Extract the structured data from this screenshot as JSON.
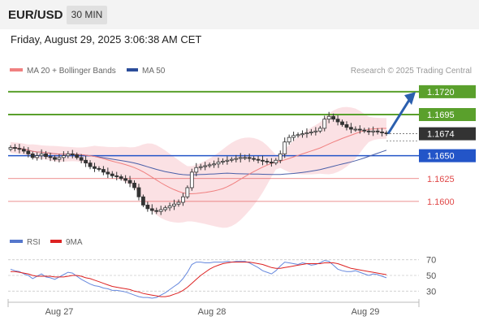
{
  "header": {
    "pair": "EUR/USD",
    "timeframe": "30 MIN",
    "datetime": "Friday, August 29, 2025 3:06:38 AM CET"
  },
  "legend": {
    "ma20": "MA 20 + Bollinger Bands",
    "ma50": "MA 50",
    "credit": "Research © 2025 Trading Central",
    "rsi": "RSI",
    "rsi_ma": "9MA"
  },
  "colors": {
    "candle": "#333333",
    "ma20": "#f08080",
    "bollinger": "#fadadd",
    "ma50": "#4a5fa8",
    "resistance": "#5aa02c",
    "pivot": "#2355c8",
    "support": "#e04848",
    "last_price": "#333333",
    "arrow": "#2b5fae",
    "rsi": "#6688dd",
    "rsi_ma": "#dd2222"
  },
  "chart_data": [
    {
      "type": "candlestick",
      "x_ticks": [
        "Aug 27",
        "Aug 28",
        "Aug 29"
      ],
      "ylim": [
        1.1575,
        1.1735
      ],
      "levels": [
        {
          "label": "1.1720",
          "value": 1.172,
          "kind": "resistance"
        },
        {
          "label": "1.1695",
          "value": 1.1695,
          "kind": "resistance"
        },
        {
          "label": "1.1674",
          "value": 1.1674,
          "kind": "last"
        },
        {
          "label": "1.1650",
          "value": 1.165,
          "kind": "pivot"
        },
        {
          "label": "1.1625",
          "value": 1.1625,
          "kind": "support"
        },
        {
          "label": "1.1600",
          "value": 1.16,
          "kind": "support"
        }
      ],
      "close": [
        1.1659,
        1.1658,
        1.1657,
        1.1655,
        1.1652,
        1.1648,
        1.165,
        1.1652,
        1.1649,
        1.1648,
        1.1646,
        1.1648,
        1.165,
        1.1652,
        1.1651,
        1.1648,
        1.1645,
        1.1642,
        1.1638,
        1.1636,
        1.1635,
        1.1632,
        1.163,
        1.1628,
        1.1627,
        1.1625,
        1.1623,
        1.162,
        1.1615,
        1.1605,
        1.1596,
        1.1592,
        1.159,
        1.1589,
        1.1591,
        1.1593,
        1.1595,
        1.1597,
        1.1599,
        1.1605,
        1.1615,
        1.1632,
        1.1637,
        1.1638,
        1.1639,
        1.164,
        1.1641,
        1.1643,
        1.1644,
        1.1645,
        1.1646,
        1.1647,
        1.1648,
        1.1648,
        1.1647,
        1.1646,
        1.1645,
        1.1644,
        1.1643,
        1.1642,
        1.1645,
        1.1652,
        1.1665,
        1.167,
        1.1672,
        1.1673,
        1.1674,
        1.1675,
        1.1676,
        1.1677,
        1.168,
        1.169,
        1.1693,
        1.169,
        1.1687,
        1.1684,
        1.1681,
        1.1679,
        1.1679,
        1.1678,
        1.1677,
        1.1676,
        1.1677,
        1.1676,
        1.1675,
        1.1674
      ],
      "rsi_ylim": [
        20,
        80
      ],
      "rsi_levels": [
        70,
        50,
        30
      ],
      "rsi": [
        58,
        56,
        55,
        52,
        50,
        46,
        49,
        52,
        48,
        47,
        45,
        48,
        51,
        54,
        53,
        49,
        45,
        42,
        39,
        37,
        36,
        34,
        33,
        31,
        31,
        30,
        29,
        27,
        25,
        23,
        22,
        22,
        21,
        22,
        25,
        28,
        32,
        36,
        40,
        46,
        54,
        64,
        67,
        67,
        66,
        66,
        67,
        67,
        67,
        68,
        67,
        68,
        68,
        68,
        66,
        63,
        60,
        56,
        54,
        52,
        56,
        62,
        67,
        66,
        65,
        64,
        66,
        65,
        63,
        64,
        66,
        69,
        68,
        63,
        58,
        56,
        55,
        55,
        56,
        54,
        52,
        50,
        52,
        51,
        49,
        47
      ],
      "rsi_ma": [
        55,
        55,
        54,
        53,
        52,
        50,
        49,
        49,
        49,
        49,
        48,
        48,
        48,
        49,
        50,
        50,
        49,
        47,
        46,
        44,
        42,
        40,
        38,
        36,
        35,
        34,
        33,
        32,
        30,
        29,
        27,
        26,
        25,
        24,
        23,
        23,
        24,
        26,
        28,
        31,
        35,
        40,
        45,
        50,
        54,
        58,
        61,
        63,
        65,
        66,
        67,
        67,
        67,
        67,
        67,
        66,
        65,
        64,
        62,
        60,
        59,
        59,
        60,
        61,
        62,
        63,
        64,
        65,
        65,
        65,
        65,
        66,
        66,
        66,
        65,
        63,
        61,
        59,
        58,
        57,
        56,
        55,
        54,
        53,
        52,
        51
      ]
    }
  ]
}
